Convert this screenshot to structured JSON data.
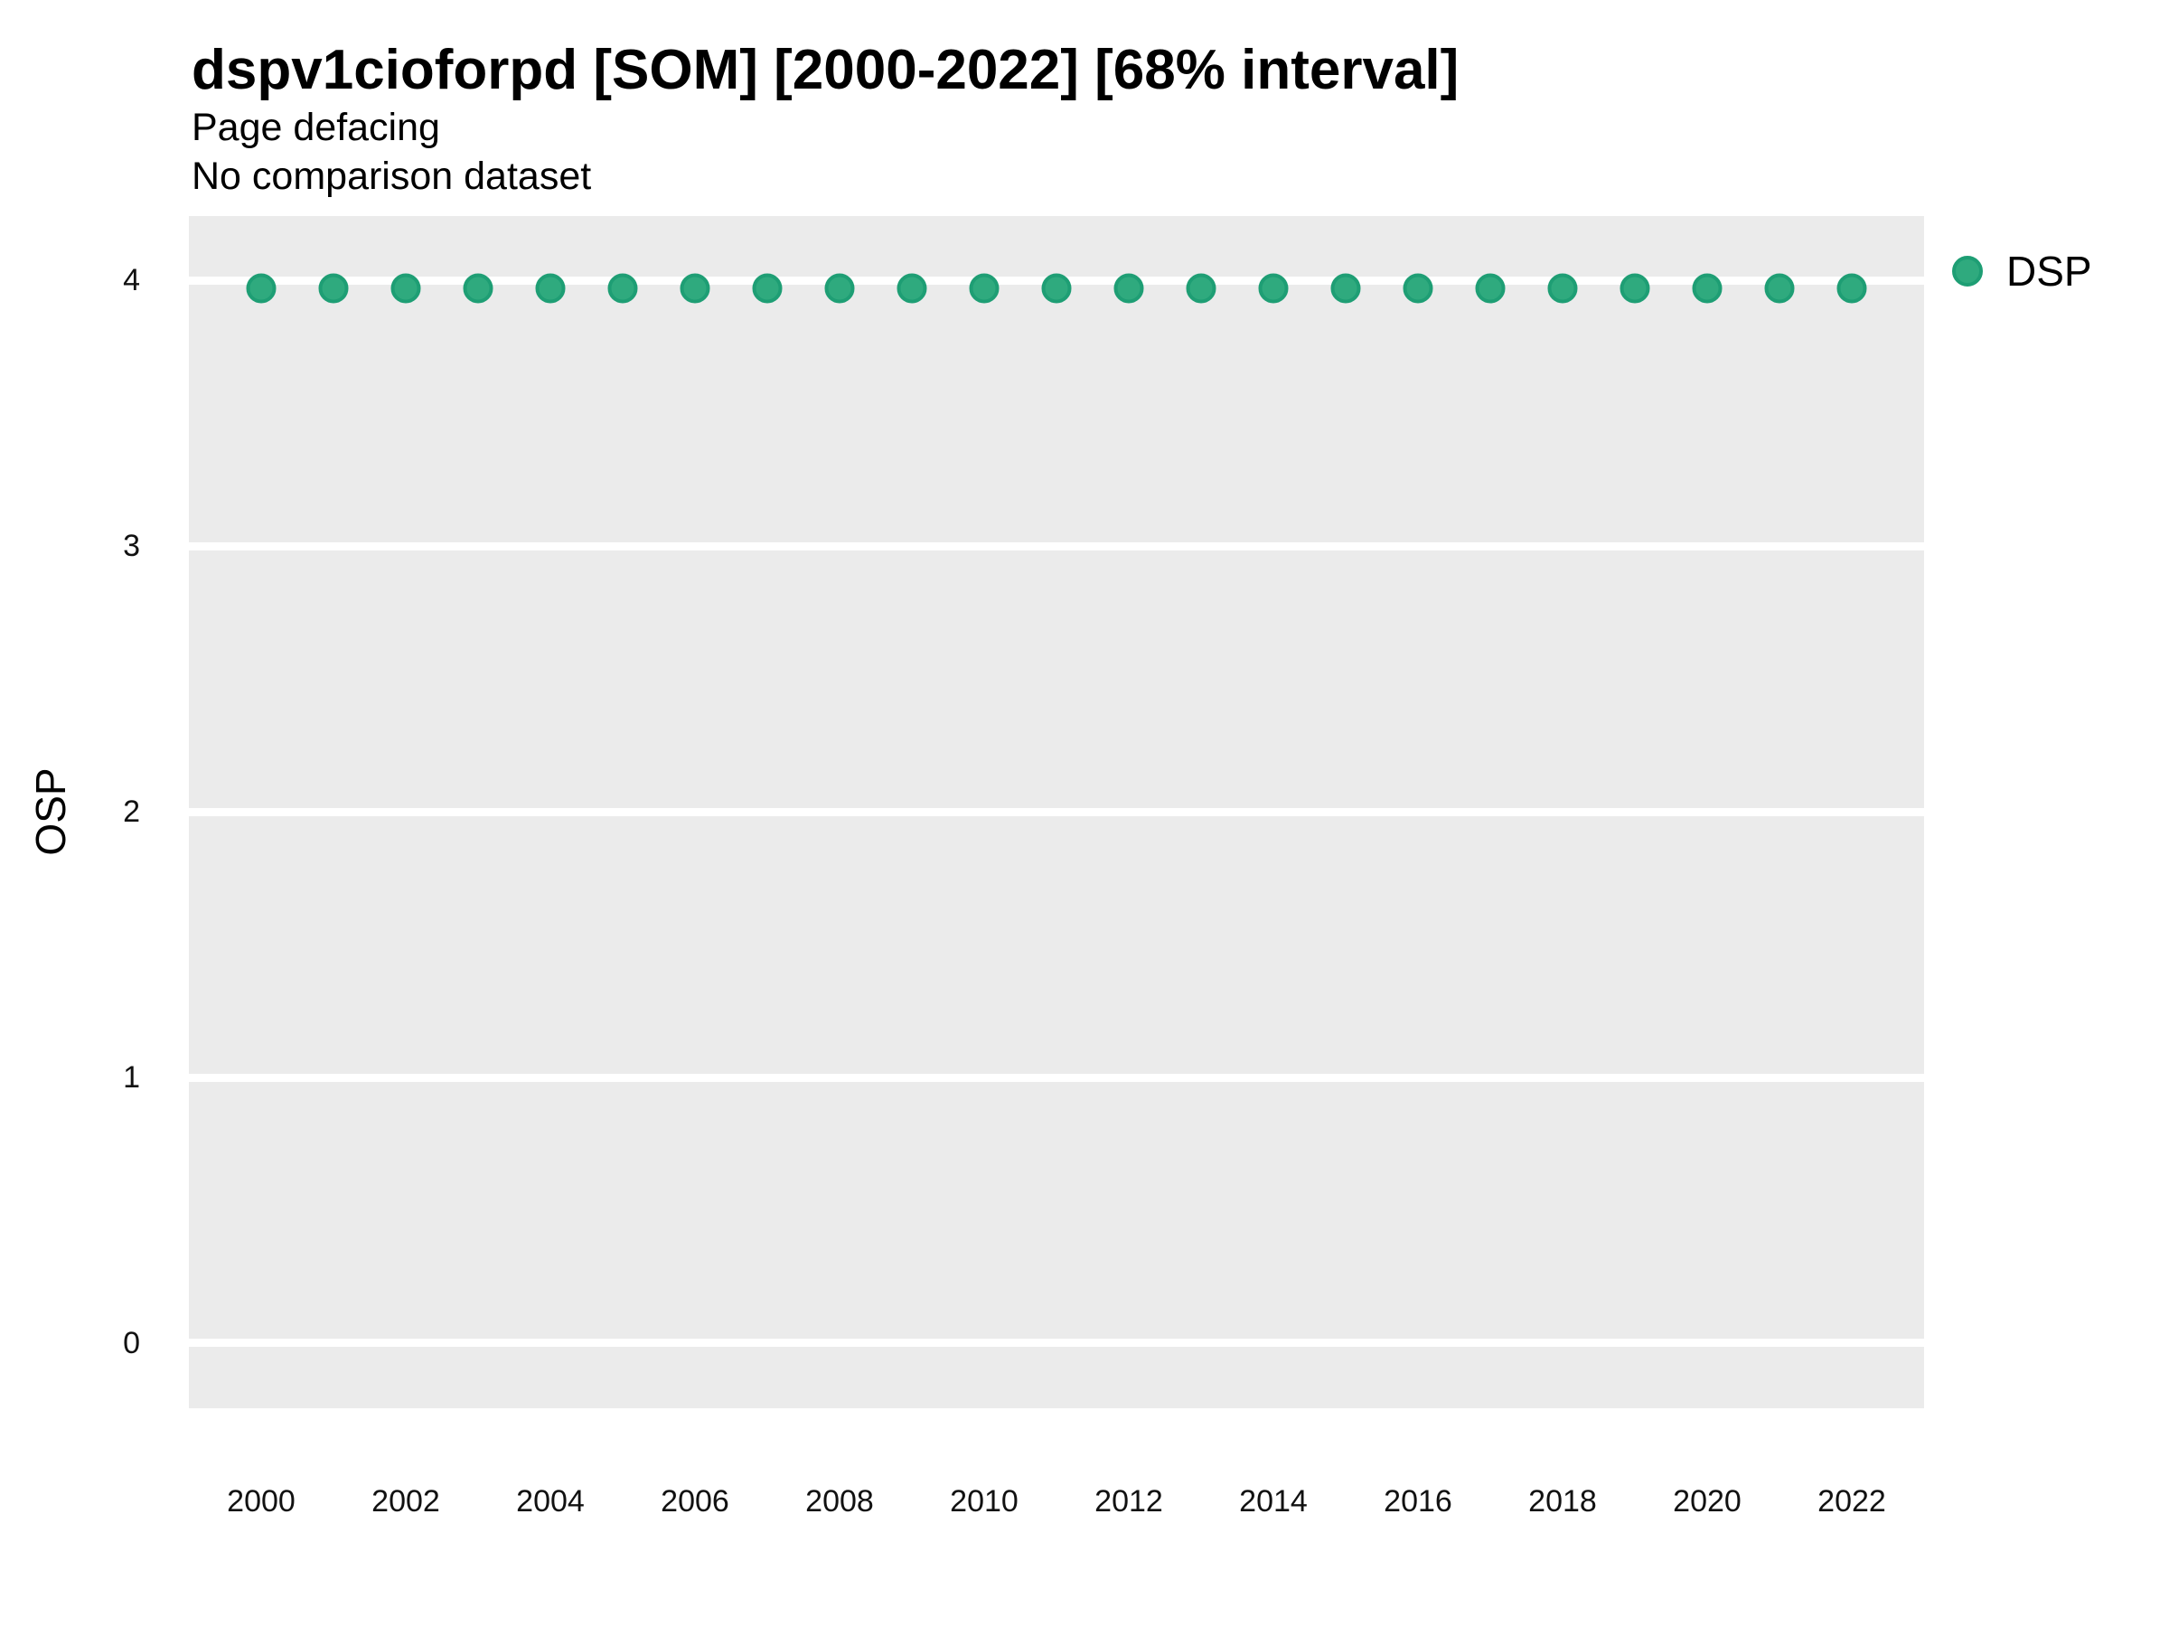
{
  "figure": {
    "title": "dspv1cioforpd [SOM] [2000-2022] [68% interval]",
    "subtitle_line1": "Page defacing",
    "subtitle_line2": "No comparison dataset"
  },
  "chart_data": {
    "type": "scatter",
    "title": "dspv1cioforpd [SOM] [2000-2022] [68% interval]",
    "subtitle": [
      "Page defacing",
      "No comparison dataset"
    ],
    "xlabel": "",
    "ylabel": "OSP",
    "x_ticks": [
      2000,
      2002,
      2004,
      2006,
      2008,
      2010,
      2012,
      2014,
      2016,
      2018,
      2020,
      2022
    ],
    "y_ticks": [
      0,
      1,
      2,
      3,
      4
    ],
    "xlim": [
      1999.0,
      2023.0
    ],
    "ylim": [
      -0.245,
      4.242
    ],
    "grid": {
      "horizontal_major": true,
      "vertical": false,
      "minor": false,
      "color": "#FFFFFF"
    },
    "plot_background": "#EBEBEB",
    "legend_position": "right",
    "series": [
      {
        "name": "DSP",
        "marker": "circle",
        "fill": "#2FAA7E",
        "stroke": "#1E9E74",
        "x": [
          2000,
          2001,
          2002,
          2003,
          2004,
          2005,
          2006,
          2007,
          2008,
          2009,
          2010,
          2011,
          2012,
          2013,
          2014,
          2015,
          2016,
          2017,
          2018,
          2019,
          2020,
          2021,
          2022
        ],
        "y": [
          3.97,
          3.97,
          3.97,
          3.97,
          3.97,
          3.97,
          3.97,
          3.97,
          3.97,
          3.97,
          3.97,
          3.97,
          3.97,
          3.97,
          3.97,
          3.97,
          3.97,
          3.97,
          3.97,
          3.97,
          3.97,
          3.97,
          3.97
        ]
      }
    ]
  }
}
